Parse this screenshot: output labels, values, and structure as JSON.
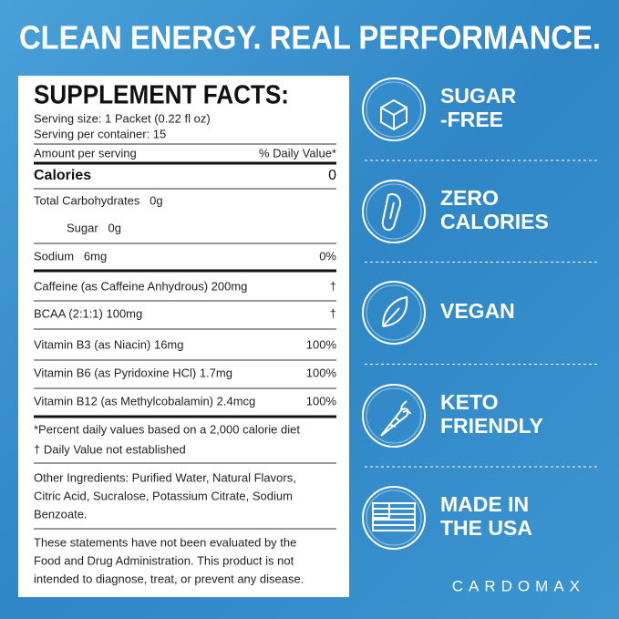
{
  "header": {
    "title": "CLEAN ENERGY. REAL PERFORMANCE."
  },
  "facts": {
    "title": "SUPPLEMENT FACTS:",
    "serving_size": "Serving size: 1 Packet (0.22 fl oz)",
    "servings": "Serving per container: 15",
    "amount_label": "Amount per serving",
    "dv_label": "% Daily Value*",
    "calories": [
      "Calories",
      "0"
    ],
    "rows": [
      [
        "Total Carbohydrates   0g",
        ""
      ],
      [
        "Sugar   0g",
        ""
      ],
      [
        "Sodium   6mg",
        "0%"
      ],
      [
        "Caffeine (as Caffeine Anhydrous) 200mg",
        "†"
      ],
      [
        "BCAA (2:1:1) 100mg",
        "†"
      ],
      [
        "Vitamin B3 (as Niacin) 16mg",
        "100%"
      ],
      [
        "Vitamin B6 (as Pyridoxine HCl) 1.7mg",
        "100%"
      ],
      [
        "Vitamin B12 (as Methylcobalamin) 2.4mcg",
        "100%"
      ]
    ],
    "footnotes": [
      "*Percent daily values based on a 2,000 calorie diet",
      "† Daily Value not established"
    ],
    "other_ingredients": [
      "Other Ingredients: Purified Water, Natural Flavors,",
      "Citric Acid, Sucralose, Potassium Citrate, Sodium",
      "Benzoate."
    ],
    "disclaimer": [
      "These statements have not been evaluated by the",
      "Food and Drug Administration. This product is not",
      "intended to diagnose, treat, or prevent any disease."
    ]
  },
  "badges": [
    {
      "lines": [
        "SUGAR",
        "-FREE"
      ]
    },
    {
      "lines": [
        "ZERO",
        "CALORIES"
      ]
    },
    {
      "lines": [
        "VEGAN"
      ]
    },
    {
      "lines": [
        "KETO",
        "FRIENDLY"
      ]
    },
    {
      "lines": [
        "MADE IN",
        "THE USA"
      ]
    }
  ],
  "brand": "CARDOMAX"
}
